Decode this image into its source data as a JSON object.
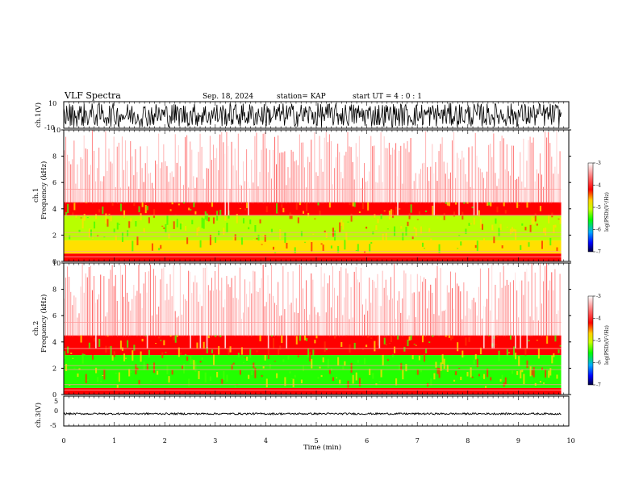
{
  "header": {
    "title": "VLF Spectra",
    "date": "Sep. 18, 2024",
    "station": "station= KAP",
    "start": "start  UT =   4 : 0  : 1"
  },
  "chart_data": [
    {
      "type": "line",
      "panel": "ch1-waveform",
      "ylabel": "ch.1(V)",
      "ylim": [
        -10,
        10
      ],
      "yticks": [
        "10",
        "-10"
      ],
      "xlim": [
        0,
        10
      ],
      "description_values": {
        "typical_min": -9,
        "typical_max": 9
      }
    },
    {
      "type": "heatmap",
      "panel": "ch1-spectrogram",
      "ylabel_top": "ch.1",
      "ylabel": "Frequency  (kHz)",
      "ylim": [
        0,
        10
      ],
      "yticks": [
        "0",
        "2",
        "4",
        "6",
        "8",
        "10"
      ],
      "xlim": [
        0,
        9.85
      ],
      "colorbar": {
        "label": "log(PSD)(V²/Hz)",
        "range": [
          -7,
          -3
        ],
        "ticks": [
          "-3",
          "-4",
          "-5",
          "-6",
          "-7"
        ]
      },
      "bands": [
        {
          "from": 0,
          "to": 0.6,
          "level": -3.8
        },
        {
          "from": 0.6,
          "to": 1.6,
          "level": -4.7
        },
        {
          "from": 1.6,
          "to": 3.5,
          "level": -5.0
        },
        {
          "from": 3.5,
          "to": 4.5,
          "level": -3.9
        },
        {
          "from": 4.5,
          "to": 10,
          "level": -3.3
        }
      ]
    },
    {
      "type": "heatmap",
      "panel": "ch2-spectrogram",
      "ylabel_top": "ch.2",
      "ylabel": "Frequency  (kHz)",
      "ylim": [
        0,
        10
      ],
      "yticks": [
        "0",
        "2",
        "4",
        "6",
        "8",
        "10"
      ],
      "xlim": [
        0,
        9.85
      ],
      "colorbar": {
        "label": "log(PSD)(V²/Hz)",
        "range": [
          -7,
          -3
        ],
        "ticks": [
          "-3",
          "-4",
          "-5",
          "-6",
          "-7"
        ]
      },
      "bands": [
        {
          "from": 0,
          "to": 0.5,
          "level": -3.8
        },
        {
          "from": 0.5,
          "to": 3.0,
          "level": -5.3
        },
        {
          "from": 3.0,
          "to": 4.5,
          "level": -3.9
        },
        {
          "from": 4.5,
          "to": 10,
          "level": -3.3
        }
      ]
    },
    {
      "type": "line",
      "panel": "ch3-waveform",
      "ylabel": "ch.3(V)",
      "ylim": [
        -5,
        5
      ],
      "yticks": [
        "5",
        "0",
        "-5"
      ],
      "xlim": [
        0,
        10
      ],
      "description_values": {
        "typical_min": -1.2,
        "typical_max": -0.6
      }
    }
  ],
  "xaxis": {
    "label": "Time  (min)",
    "ticks": [
      "0",
      "1",
      "2",
      "3",
      "4",
      "5",
      "6",
      "7",
      "8",
      "9",
      "10"
    ],
    "range": [
      0,
      10
    ]
  }
}
